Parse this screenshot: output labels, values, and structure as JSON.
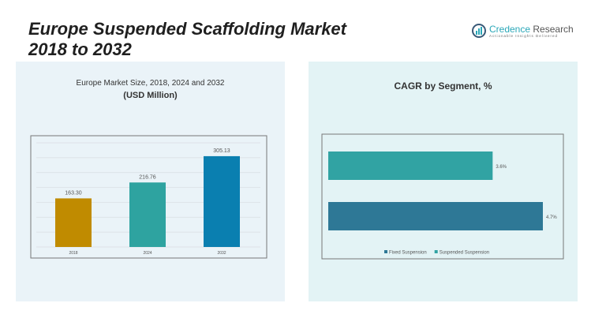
{
  "title_line1": "Europe Suspended Scaffolding Market",
  "title_line2": "2018 to 2032",
  "logo": {
    "name1": "Credence",
    "name2": "Research",
    "tagline": "Actionable Insights Delivered"
  },
  "left_panel": {
    "title": "Europe Market Size, 2018, 2024 and 2032",
    "subtitle": "(USD Million)"
  },
  "right_panel": {
    "title": "CAGR by Segment, %"
  },
  "chart_data": [
    {
      "type": "bar",
      "title": "Europe Market Size, 2018, 2024 and 2032",
      "ylabel": "(USD Million)",
      "categories": [
        "2018",
        "2024",
        "2032"
      ],
      "values": [
        163.3,
        216.76,
        305.13
      ],
      "labels": [
        "163.30",
        "216.76",
        "305.13"
      ],
      "colors": [
        "#c08b00",
        "#2ea3a0",
        "#0a7fb0"
      ],
      "ylim": [
        0,
        350
      ],
      "grid": true
    },
    {
      "type": "bar",
      "orientation": "horizontal",
      "title": "CAGR by Segment, %",
      "categories": [
        "Suspended Suspension",
        "Fixed Suspension"
      ],
      "values": [
        3.6,
        4.7
      ],
      "labels": [
        "3.6%",
        "4.7%"
      ],
      "colors": [
        "#31a3a3",
        "#2e7896"
      ],
      "legend": [
        {
          "name": "Fixed Suspension",
          "color": "#2e7896"
        },
        {
          "name": "Suspended Suspension",
          "color": "#31a3a3"
        }
      ],
      "legend_position": "bottom"
    }
  ]
}
